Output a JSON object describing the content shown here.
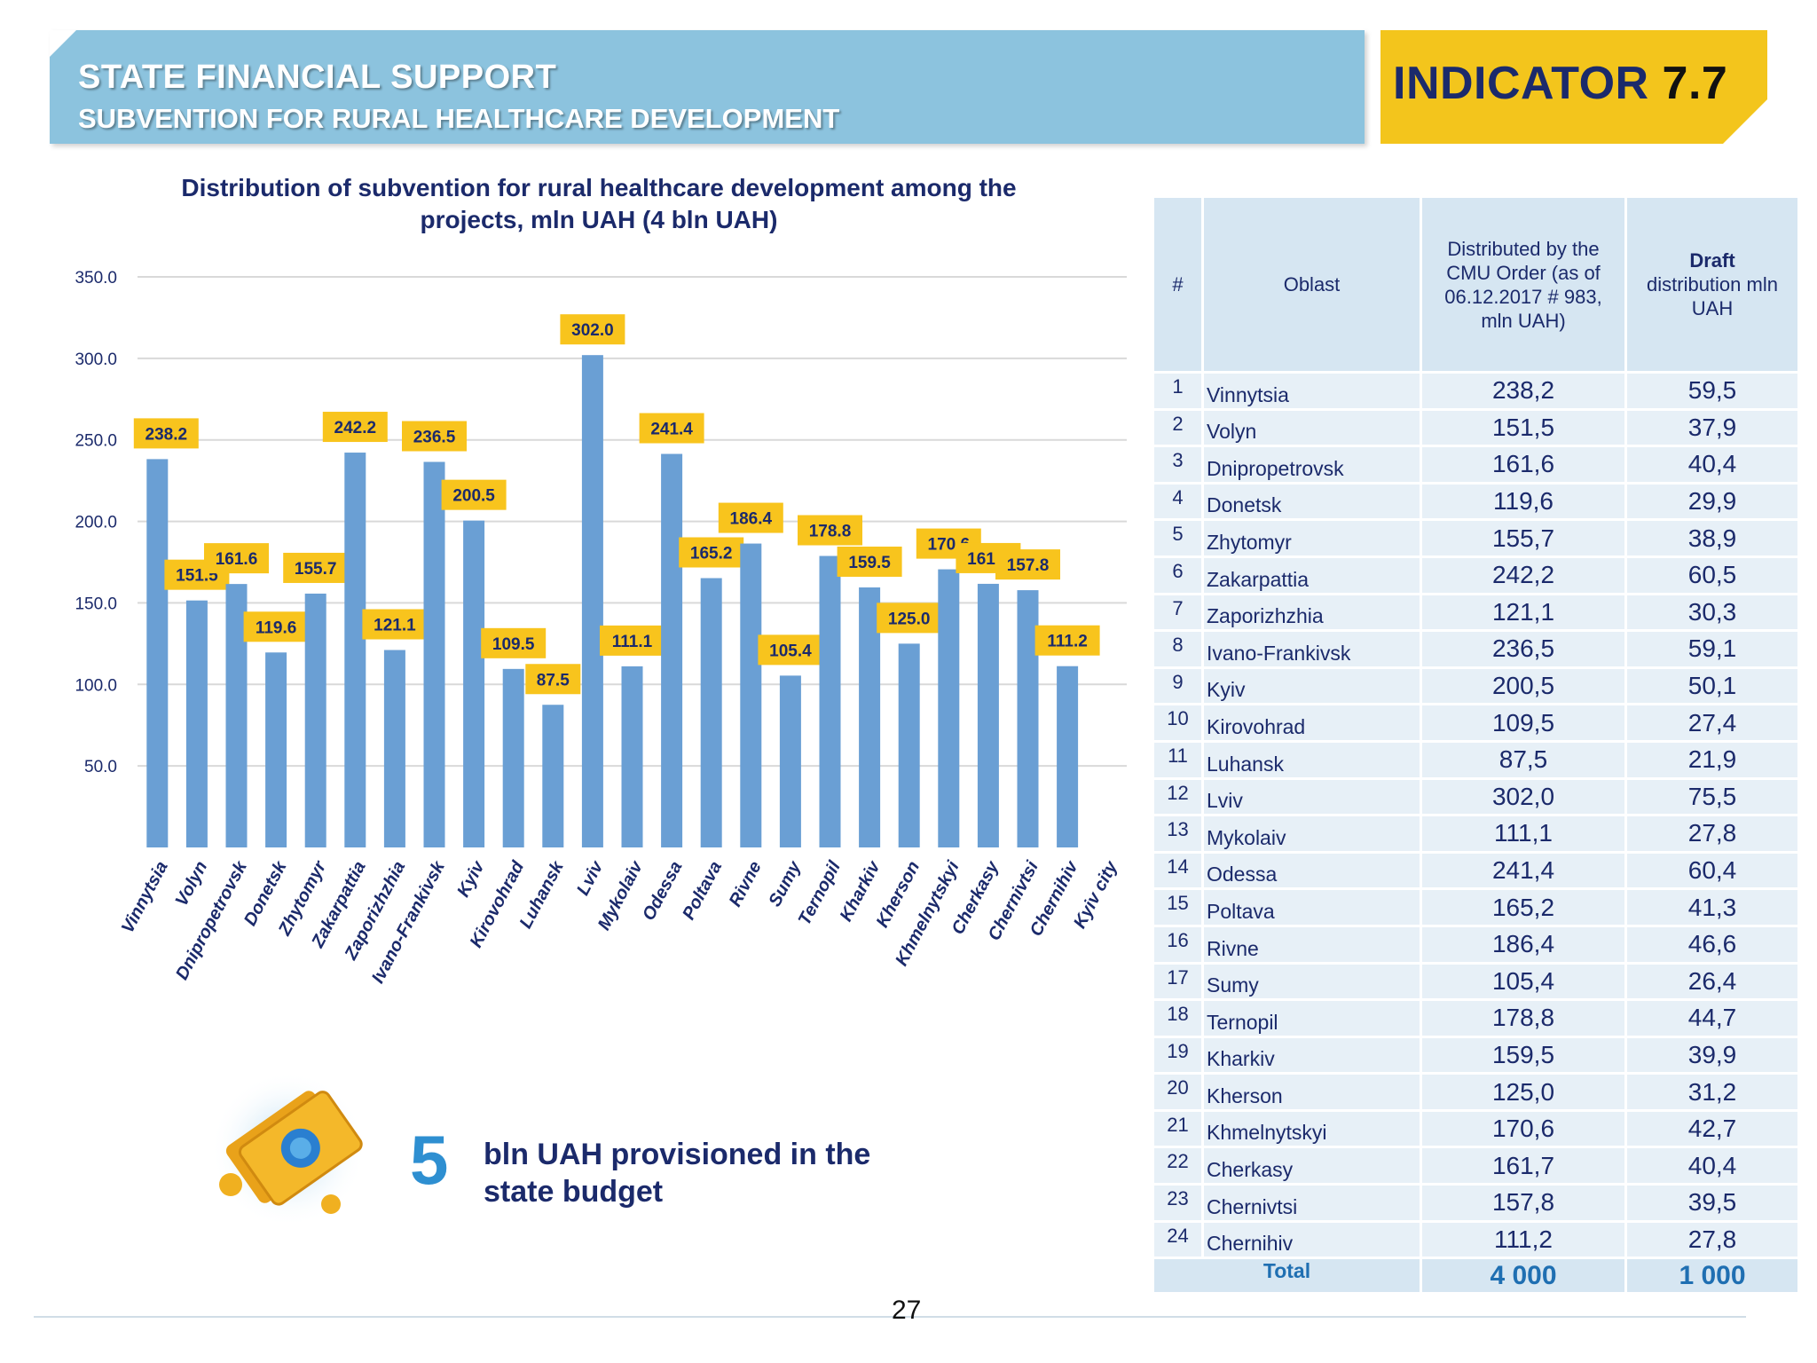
{
  "header": {
    "title": "STATE FINANCIAL SUPPORT",
    "subtitle": "SUBVENTION FOR RURAL HEALTHCARE DEVELOPMENT",
    "indicator_word": "INDICATOR",
    "indicator_number": "7.7"
  },
  "colors": {
    "banner": "#8cc3de",
    "indicator_bg": "#f3c51c",
    "bar": "#6a9fd4",
    "label_bg": "#f8c41d",
    "navy": "#1b2a6b",
    "accent_blue": "#2e8fd1"
  },
  "chart_data": {
    "type": "bar",
    "title": "Distribution of subvention for rural healthcare development among the projects, mln UAH (4 bln UAH)",
    "categories": [
      "Vinnytsia",
      "Volyn",
      "Dnipropetrovsk",
      "Donetsk",
      "Zhytomyr",
      "Zakarpattia",
      "Zaporizhzhia",
      "Ivano-Frankivsk",
      "Kyiv",
      "Kirovohrad",
      "Luhansk",
      "Lviv",
      "Mykolaiv",
      "Odessa",
      "Poltava",
      "Rivne",
      "Sumy",
      "Ternopil",
      "Kharkiv",
      "Kherson",
      "Khmelnytskyi",
      "Cherkasy",
      "Chernivtsi",
      "Chernihiv",
      "Kyiv city"
    ],
    "values": [
      238.2,
      151.5,
      161.6,
      119.6,
      155.7,
      242.2,
      121.1,
      236.5,
      200.5,
      109.5,
      87.5,
      302.0,
      111.1,
      241.4,
      165.2,
      186.4,
      105.4,
      178.8,
      159.5,
      125.0,
      170.6,
      161.7,
      157.8,
      111.2,
      null
    ],
    "labels": [
      "238.2",
      "151.5",
      "161.6",
      "119.6",
      "155.7",
      "242.2",
      "121.1",
      "236.5",
      "200.5",
      "109.5",
      "87.5",
      "302.0",
      "111.1",
      "241.4",
      "165.2",
      "186.4",
      "105.4",
      "178.8",
      "159.5",
      "125.0",
      "170.6",
      "161.7",
      "157.8",
      "111.2",
      ""
    ],
    "yticks": [
      "50.0",
      "100.0",
      "150.0",
      "200.0",
      "250.0",
      "300.0",
      "350.0"
    ],
    "ylim": [
      0,
      350
    ],
    "grid": true
  },
  "info": {
    "big_number": "5",
    "text": "bln UAH provisioned in the state budget"
  },
  "table": {
    "headers": {
      "num": "#",
      "oblast": "Oblast",
      "cmu": "Distributed by the CMU Order (as of 06.12.2017 # 983, mln UAH)",
      "draft_bold": "Draft",
      "draft_rest": "distribution mln UAH"
    },
    "rows": [
      [
        "1",
        "Vinnytsia",
        "238,2",
        "59,5"
      ],
      [
        "2",
        "Volyn",
        "151,5",
        "37,9"
      ],
      [
        "3",
        "Dnipropetrovsk",
        "161,6",
        "40,4"
      ],
      [
        "4",
        "Donetsk",
        "119,6",
        "29,9"
      ],
      [
        "5",
        "Zhytomyr",
        "155,7",
        "38,9"
      ],
      [
        "6",
        "Zakarpattia",
        "242,2",
        "60,5"
      ],
      [
        "7",
        "Zaporizhzhia",
        "121,1",
        "30,3"
      ],
      [
        "8",
        "Ivano-Frankivsk",
        "236,5",
        "59,1"
      ],
      [
        "9",
        "Kyiv",
        "200,5",
        "50,1"
      ],
      [
        "10",
        "Kirovohrad",
        "109,5",
        "27,4"
      ],
      [
        "11",
        "Luhansk",
        "87,5",
        "21,9"
      ],
      [
        "12",
        "Lviv",
        "302,0",
        "75,5"
      ],
      [
        "13",
        "Mykolaiv",
        "111,1",
        "27,8"
      ],
      [
        "14",
        "Odessa",
        "241,4",
        "60,4"
      ],
      [
        "15",
        "Poltava",
        "165,2",
        "41,3"
      ],
      [
        "16",
        "Rivne",
        "186,4",
        "46,6"
      ],
      [
        "17",
        "Sumy",
        "105,4",
        "26,4"
      ],
      [
        "18",
        "Ternopil",
        "178,8",
        "44,7"
      ],
      [
        "19",
        "Kharkiv",
        "159,5",
        "39,9"
      ],
      [
        "20",
        "Kherson",
        "125,0",
        "31,2"
      ],
      [
        "21",
        "Khmelnytskyi",
        "170,6",
        "42,7"
      ],
      [
        "22",
        "Cherkasy",
        "161,7",
        "40,4"
      ],
      [
        "23",
        "Chernivtsi",
        "157,8",
        "39,5"
      ],
      [
        "24",
        "Chernihiv",
        "111,2",
        "27,8"
      ]
    ],
    "total": {
      "label": "Total",
      "cmu": "4 000",
      "draft": "1 000"
    }
  },
  "footer": {
    "page": "27"
  }
}
